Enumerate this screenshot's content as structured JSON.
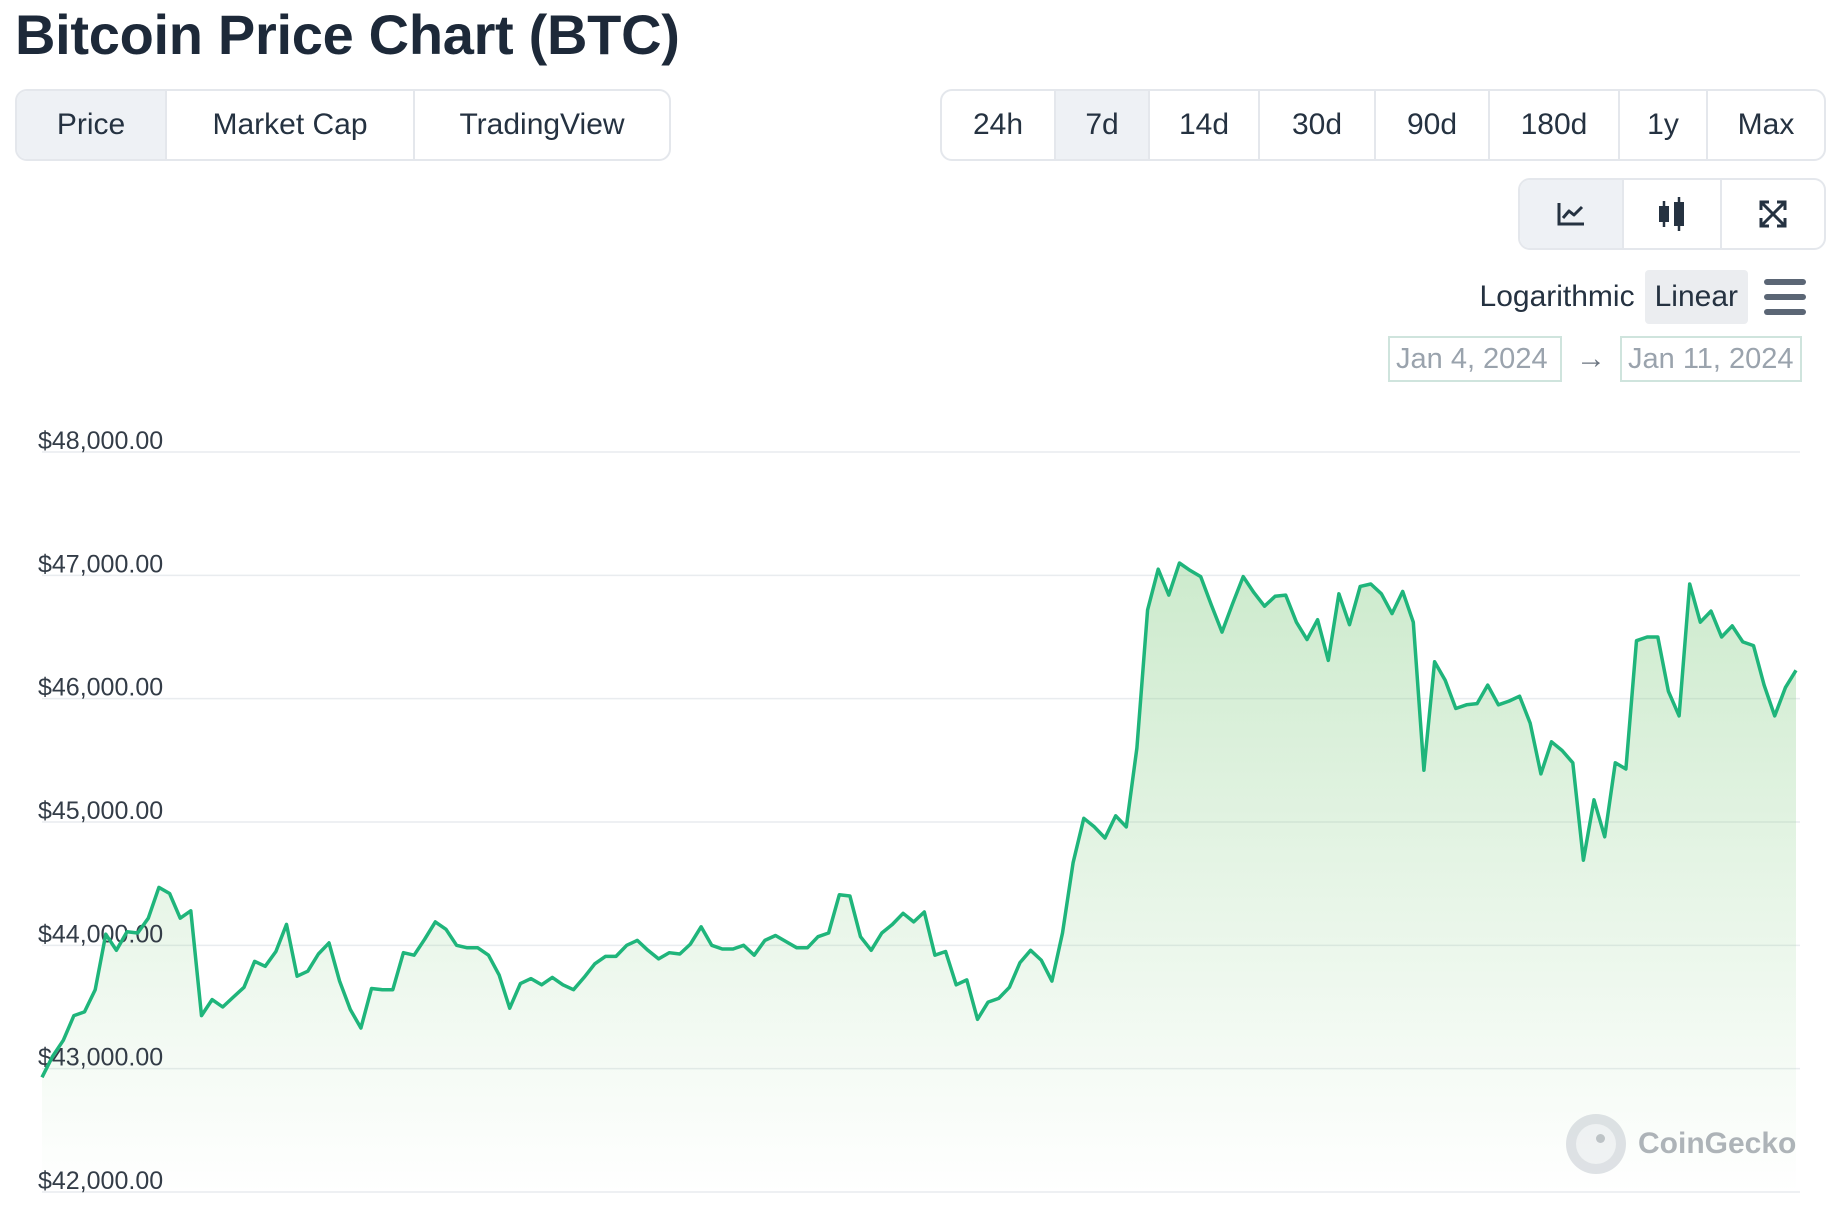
{
  "header": {
    "title": "Bitcoin Price Chart (BTC)"
  },
  "tabs": [
    {
      "label": "Price",
      "active": true
    },
    {
      "label": "Market Cap",
      "active": false
    },
    {
      "label": "TradingView",
      "active": false
    }
  ],
  "ranges": [
    {
      "label": "24h",
      "active": false
    },
    {
      "label": "7d",
      "active": true
    },
    {
      "label": "14d",
      "active": false
    },
    {
      "label": "30d",
      "active": false
    },
    {
      "label": "90d",
      "active": false
    },
    {
      "label": "180d",
      "active": false
    },
    {
      "label": "1y",
      "active": false
    },
    {
      "label": "Max",
      "active": false
    }
  ],
  "tools": [
    {
      "icon": "line-chart-icon",
      "active": true
    },
    {
      "icon": "candlestick-icon",
      "active": false
    },
    {
      "icon": "fullscreen-icon",
      "active": false
    }
  ],
  "scale": {
    "options": [
      "Logarithmic",
      "Linear"
    ],
    "selected": "Linear"
  },
  "date_range": {
    "from": "Jan 4, 2024",
    "arrow": "→",
    "to": "Jan 11, 2024"
  },
  "watermark": {
    "text": "CoinGecko"
  },
  "colors": {
    "line": "#1fb57b",
    "fill": "#8fd18f",
    "grid": "#e9ecef"
  },
  "chart_data": {
    "type": "area",
    "ylim": [
      42000,
      48000
    ],
    "ytick_labels": [
      "$48,000.00",
      "$47,000.00",
      "$46,000.00",
      "$45,000.00",
      "$44,000.00",
      "$43,000.00",
      "$42,000.00"
    ],
    "ytick_values": [
      48000,
      47000,
      46000,
      45000,
      44000,
      43000,
      42000
    ],
    "x_start": "Jan 4, 2024",
    "x_end": "Jan 11, 2024",
    "values": [
      42930,
      43100,
      43230,
      43430,
      43460,
      43640,
      44090,
      43960,
      44110,
      44100,
      44220,
      44470,
      44420,
      44220,
      44280,
      43430,
      43560,
      43500,
      43580,
      43660,
      43870,
      43830,
      43950,
      44170,
      43750,
      43790,
      43930,
      44020,
      43710,
      43480,
      43330,
      43650,
      43640,
      43640,
      43940,
      43920,
      44050,
      44190,
      44130,
      44000,
      43980,
      43980,
      43920,
      43760,
      43490,
      43690,
      43730,
      43680,
      43740,
      43680,
      43640,
      43740,
      43850,
      43910,
      43910,
      44000,
      44040,
      43960,
      43890,
      43940,
      43930,
      44010,
      44150,
      44000,
      43970,
      43970,
      44000,
      43920,
      44040,
      44080,
      44030,
      43980,
      43980,
      44070,
      44100,
      44410,
      44400,
      44070,
      43960,
      44100,
      44170,
      44260,
      44190,
      44270,
      43920,
      43950,
      43680,
      43720,
      43400,
      43540,
      43570,
      43660,
      43860,
      43960,
      43880,
      43710,
      44100,
      44670,
      45030,
      44960,
      44870,
      45050,
      44960,
      45600,
      46720,
      47050,
      46840,
      47100,
      47040,
      46990,
      46760,
      46540,
      46770,
      46990,
      46860,
      46750,
      46830,
      46840,
      46620,
      46480,
      46640,
      46310,
      46850,
      46600,
      46910,
      46930,
      46850,
      46690,
      46870,
      46620,
      45420,
      46300,
      46150,
      45920,
      45950,
      45960,
      46110,
      45950,
      45980,
      46020,
      45800,
      45390,
      45650,
      45580,
      45480,
      44690,
      45180,
      44880,
      45480,
      45430,
      46470,
      46500,
      46500,
      46060,
      45860,
      46930,
      46620,
      46710,
      46500,
      46590,
      46460,
      46430,
      46110,
      45860,
      46090,
      46230
    ]
  }
}
